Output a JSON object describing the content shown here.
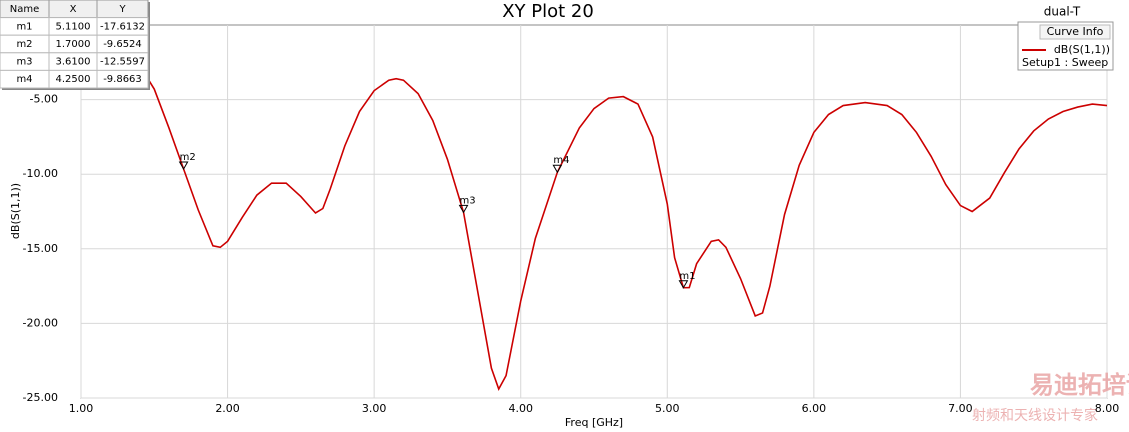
{
  "chart_data": {
    "type": "line",
    "title": "XY Plot 20",
    "plot_name": "dual-T",
    "legend_title": "Curve Info",
    "x_label": "Freq [GHz]",
    "y_label": "dB(S(1,1))",
    "x": [
      1.0,
      1.2,
      1.4,
      1.5,
      1.6,
      1.7,
      1.8,
      1.9,
      1.95,
      2.0,
      2.1,
      2.2,
      2.3,
      2.4,
      2.5,
      2.6,
      2.65,
      2.7,
      2.8,
      2.9,
      3.0,
      3.1,
      3.15,
      3.2,
      3.3,
      3.4,
      3.5,
      3.61,
      3.7,
      3.8,
      3.85,
      3.9,
      4.0,
      4.1,
      4.25,
      4.4,
      4.5,
      4.6,
      4.7,
      4.8,
      4.9,
      5.0,
      5.05,
      5.11,
      5.15,
      5.2,
      5.3,
      5.35,
      5.4,
      5.5,
      5.6,
      5.65,
      5.7,
      5.8,
      5.9,
      6.0,
      6.1,
      6.2,
      6.35,
      6.5,
      6.6,
      6.7,
      6.8,
      6.9,
      7.0,
      7.08,
      7.2,
      7.3,
      7.4,
      7.5,
      7.6,
      7.7,
      7.8,
      7.9,
      8.0
    ],
    "series": [
      {
        "name": "dB(S(1,1))",
        "setup": "Setup1 : Sweep",
        "color": "#cc0000",
        "values": [
          -0.8,
          -1.6,
          -2.7,
          -4.3,
          -6.9,
          -9.65,
          -12.4,
          -14.8,
          -14.9,
          -14.5,
          -12.9,
          -11.4,
          -10.6,
          -10.6,
          -11.5,
          -12.6,
          -12.3,
          -11.0,
          -8.1,
          -5.8,
          -4.4,
          -3.7,
          -3.6,
          -3.7,
          -4.6,
          -6.4,
          -9.0,
          -12.56,
          -17.5,
          -23.0,
          -24.4,
          -23.5,
          -18.5,
          -14.3,
          -9.87,
          -6.9,
          -5.6,
          -4.9,
          -4.8,
          -5.3,
          -7.5,
          -12.0,
          -15.6,
          -17.61,
          -17.6,
          -16.0,
          -14.5,
          -14.4,
          -14.9,
          -17.0,
          -19.5,
          -19.3,
          -17.5,
          -12.7,
          -9.4,
          -7.2,
          -6.0,
          -5.4,
          -5.2,
          -5.4,
          -6.0,
          -7.2,
          -8.8,
          -10.7,
          -12.1,
          -12.5,
          -11.6,
          -9.9,
          -8.3,
          -7.1,
          -6.3,
          -5.8,
          -5.5,
          -5.3,
          -5.4
        ]
      }
    ],
    "xlim": [
      1,
      8
    ],
    "ylim": [
      -25,
      0
    ],
    "xticks": [
      {
        "value": 1,
        "label": "1.00"
      },
      {
        "value": 2,
        "label": "2.00"
      },
      {
        "value": 3,
        "label": "3.00"
      },
      {
        "value": 4,
        "label": "4.00"
      },
      {
        "value": 5,
        "label": "5.00"
      },
      {
        "value": 6,
        "label": "6.00"
      },
      {
        "value": 7,
        "label": "7.00"
      },
      {
        "value": 8,
        "label": "8.00"
      }
    ],
    "yticks": [
      {
        "value": -25,
        "label": "-25.00"
      },
      {
        "value": -20,
        "label": "-20.00"
      },
      {
        "value": -15,
        "label": "-15.00"
      },
      {
        "value": -10,
        "label": "-10.00"
      },
      {
        "value": -5,
        "label": "-5.00"
      }
    ],
    "grid": true,
    "legend_position": "upper right",
    "markers": {
      "columns": [
        "Name",
        "X",
        "Y"
      ],
      "rows": [
        {
          "name": "m1",
          "x": {
            "value": 5.11,
            "label": "5.1100"
          },
          "y": -17.6132
        },
        {
          "name": "m2",
          "x": {
            "value": 1.7,
            "label": "1.7000"
          },
          "y": -9.6524
        },
        {
          "name": "m3",
          "x": {
            "value": 3.61,
            "label": "3.6100"
          },
          "y": -12.5597
        },
        {
          "name": "m4",
          "x": {
            "value": 4.25,
            "label": "4.2500"
          },
          "y": -9.8663
        }
      ]
    }
  },
  "watermark": {
    "title": "易迪拓培训",
    "subtitle": "射频和天线设计专家"
  }
}
